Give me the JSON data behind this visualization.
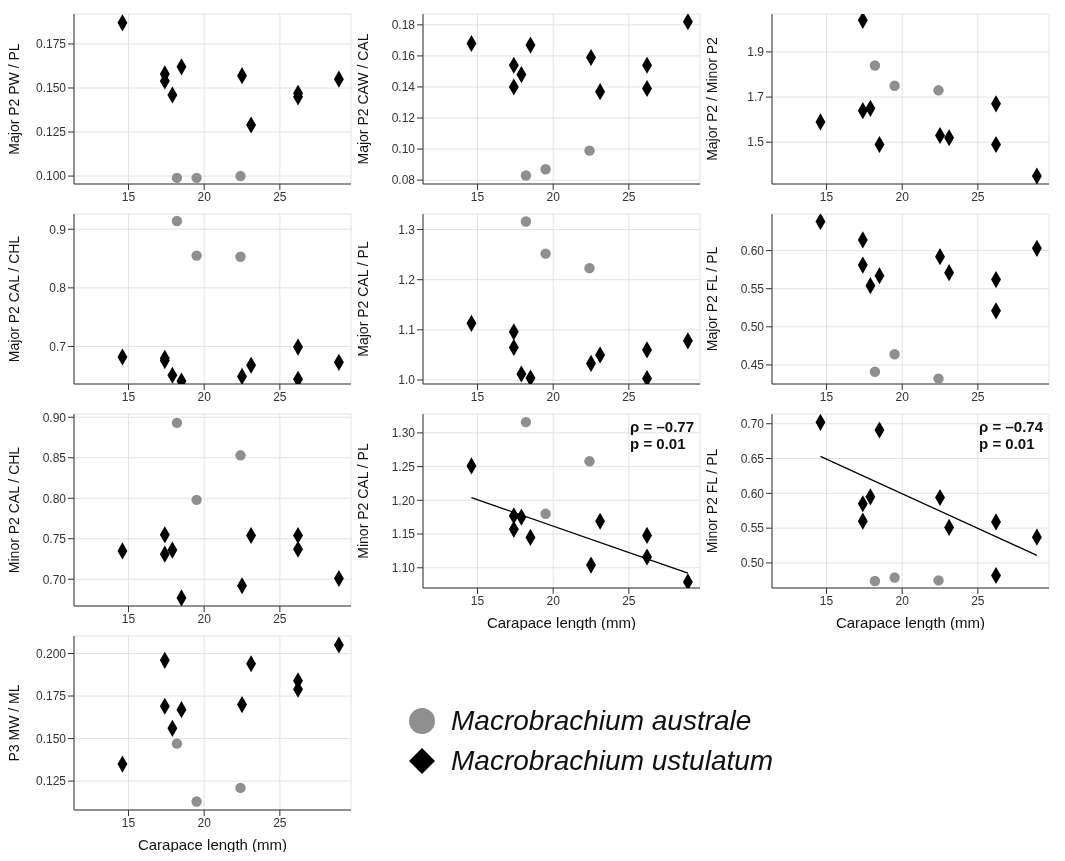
{
  "chart_data": [
    {
      "type": "scatter",
      "ylabel": "Major P2 PW / PL",
      "xlim": [
        11.4,
        29.7
      ],
      "xticks": [
        15,
        20,
        25
      ],
      "ylim": [
        0.0955,
        0.192
      ],
      "yticks": [
        {
          "value": 0.1,
          "label": "0.100"
        },
        {
          "value": 0.125,
          "label": "0.125"
        },
        {
          "value": 0.15,
          "label": "0.150"
        },
        {
          "value": 0.175,
          "label": "0.175"
        }
      ],
      "grid": true,
      "series": [
        {
          "color": "#8f8f8f",
          "marker": "circle",
          "x": [
            18.2,
            19.5,
            22.4
          ],
          "values": [
            0.099,
            0.099,
            0.1
          ]
        },
        {
          "color": "#000000",
          "marker": "diamond",
          "x": [
            14.6,
            17.4,
            17.4,
            17.9,
            18.5,
            22.5,
            23.1,
            26.2,
            26.2,
            28.9
          ],
          "values": [
            0.187,
            0.158,
            0.154,
            0.146,
            0.162,
            0.157,
            0.129,
            0.147,
            0.145,
            0.155
          ]
        }
      ]
    },
    {
      "type": "scatter",
      "ylabel": "Major P2 CAW / CAL",
      "xlim": [
        11.4,
        29.7
      ],
      "xticks": [
        15,
        20,
        25
      ],
      "ylim": [
        0.0775,
        0.187
      ],
      "yticks": [
        {
          "value": 0.08,
          "label": "0.08"
        },
        {
          "value": 0.1,
          "label": "0.10"
        },
        {
          "value": 0.12,
          "label": "0.12"
        },
        {
          "value": 0.14,
          "label": "0.14"
        },
        {
          "value": 0.16,
          "label": "0.16"
        },
        {
          "value": 0.18,
          "label": "0.18"
        }
      ],
      "grid": true,
      "series": [
        {
          "color": "#8f8f8f",
          "marker": "circle",
          "x": [
            18.2,
            19.5,
            22.4
          ],
          "values": [
            0.083,
            0.087,
            0.099
          ]
        },
        {
          "color": "#000000",
          "marker": "diamond",
          "x": [
            14.6,
            17.4,
            17.4,
            17.9,
            18.5,
            22.5,
            23.1,
            26.2,
            26.2,
            28.9
          ],
          "values": [
            0.168,
            0.154,
            0.14,
            0.148,
            0.167,
            0.159,
            0.137,
            0.154,
            0.139,
            0.182
          ]
        }
      ]
    },
    {
      "type": "scatter",
      "ylabel": "Major P2 / Minor P2",
      "xlim": [
        11.4,
        29.7
      ],
      "xticks": [
        15,
        20,
        25
      ],
      "ylim": [
        1.315,
        2.068
      ],
      "yticks": [
        1.5,
        1.7,
        1.9
      ],
      "grid": true,
      "series": [
        {
          "color": "#8f8f8f",
          "marker": "circle",
          "x": [
            18.2,
            19.5,
            22.4
          ],
          "values": [
            1.84,
            1.75,
            1.73
          ]
        },
        {
          "color": "#000000",
          "marker": "diamond",
          "x": [
            14.6,
            17.4,
            17.4,
            17.9,
            18.5,
            22.5,
            23.1,
            26.2,
            26.2,
            28.9
          ],
          "values": [
            1.59,
            2.04,
            1.64,
            1.65,
            1.49,
            1.53,
            1.52,
            1.67,
            1.49,
            1.35
          ]
        }
      ]
    },
    {
      "type": "scatter",
      "ylabel": "Major P2 CAL / CHL",
      "xlim": [
        11.4,
        29.7
      ],
      "xticks": [
        15,
        20,
        25
      ],
      "ylim": [
        0.636,
        0.926
      ],
      "yticks": [
        0.7,
        0.8,
        0.9
      ],
      "grid": true,
      "series": [
        {
          "color": "#8f8f8f",
          "marker": "circle",
          "x": [
            18.2,
            19.5,
            22.4
          ],
          "values": [
            0.914,
            0.855,
            0.853
          ]
        },
        {
          "color": "#000000",
          "marker": "diamond",
          "x": [
            14.6,
            17.4,
            17.4,
            17.9,
            18.5,
            22.5,
            23.1,
            26.2,
            26.2,
            28.9
          ],
          "values": [
            0.682,
            0.68,
            0.676,
            0.651,
            0.641,
            0.649,
            0.668,
            0.699,
            0.644,
            0.673
          ]
        }
      ]
    },
    {
      "type": "scatter",
      "ylabel": "Major P2 CAL / PL",
      "xlim": [
        11.4,
        29.7
      ],
      "xticks": [
        15,
        20,
        25
      ],
      "ylim": [
        0.992,
        1.331
      ],
      "yticks": [
        {
          "value": 1,
          "label": "1.0"
        },
        {
          "value": 1.1,
          "label": "1.1"
        },
        {
          "value": 1.2,
          "label": "1.2"
        },
        {
          "value": 1.3,
          "label": "1.3"
        }
      ],
      "grid": true,
      "series": [
        {
          "color": "#8f8f8f",
          "marker": "circle",
          "x": [
            18.2,
            19.5,
            22.4
          ],
          "values": [
            1.316,
            1.252,
            1.223
          ]
        },
        {
          "color": "#000000",
          "marker": "diamond",
          "x": [
            14.6,
            17.4,
            17.4,
            17.9,
            18.5,
            22.5,
            23.1,
            26.2,
            26.2,
            28.9
          ],
          "values": [
            1.113,
            1.096,
            1.065,
            1.012,
            1.004,
            1.033,
            1.05,
            1.06,
            1.003,
            1.078
          ]
        }
      ]
    },
    {
      "type": "scatter",
      "ylabel": "Major P2 FL / PL",
      "xlim": [
        11.4,
        29.7
      ],
      "xticks": [
        15,
        20,
        25
      ],
      "ylim": [
        0.425,
        0.648
      ],
      "yticks": [
        {
          "value": 0.45,
          "label": "0.45"
        },
        {
          "value": 0.5,
          "label": "0.50"
        },
        {
          "value": 0.55,
          "label": "0.55"
        },
        {
          "value": 0.6,
          "label": "0.60"
        }
      ],
      "grid": true,
      "series": [
        {
          "color": "#8f8f8f",
          "marker": "circle",
          "x": [
            18.2,
            19.5,
            22.4
          ],
          "values": [
            0.441,
            0.464,
            0.432
          ]
        },
        {
          "color": "#000000",
          "marker": "diamond",
          "x": [
            14.6,
            17.4,
            17.4,
            17.9,
            18.5,
            22.5,
            23.1,
            26.2,
            26.2,
            28.9
          ],
          "values": [
            0.638,
            0.614,
            0.581,
            0.554,
            0.567,
            0.592,
            0.571,
            0.562,
            0.521,
            0.603
          ]
        }
      ]
    },
    {
      "type": "scatter",
      "ylabel": "Minor P2 CAL / CHL",
      "xlim": [
        11.4,
        29.7
      ],
      "xticks": [
        15,
        20,
        25
      ],
      "ylim": [
        0.667,
        0.904
      ],
      "yticks": [
        {
          "value": 0.7,
          "label": "0.70"
        },
        {
          "value": 0.75,
          "label": "0.75"
        },
        {
          "value": 0.8,
          "label": "0.80"
        },
        {
          "value": 0.85,
          "label": "0.85"
        },
        {
          "value": 0.9,
          "label": "0.90"
        }
      ],
      "grid": true,
      "series": [
        {
          "color": "#8f8f8f",
          "marker": "circle",
          "x": [
            18.2,
            19.5,
            22.4
          ],
          "values": [
            0.893,
            0.798,
            0.853
          ]
        },
        {
          "color": "#000000",
          "marker": "diamond",
          "x": [
            14.6,
            17.4,
            17.4,
            17.9,
            18.5,
            22.5,
            23.1,
            26.2,
            26.2,
            28.9
          ],
          "values": [
            0.735,
            0.755,
            0.731,
            0.736,
            0.677,
            0.692,
            0.754,
            0.754,
            0.737,
            0.701
          ]
        }
      ]
    },
    {
      "type": "scatter",
      "ylabel": "Minor P2 CAL / PL",
      "xlabel": "Carapace length (mm)",
      "annotations": [
        "ρ = –0.77",
        "p = 0.01"
      ],
      "xlim": [
        11.4,
        29.7
      ],
      "xticks": [
        15,
        20,
        25
      ],
      "ylim": [
        1.07,
        1.328
      ],
      "yticks": [
        {
          "value": 1.1,
          "label": "1.10"
        },
        {
          "value": 1.15,
          "label": "1.15"
        },
        {
          "value": 1.2,
          "label": "1.20"
        },
        {
          "value": 1.25,
          "label": "1.25"
        },
        {
          "value": 1.3,
          "label": "1.30"
        }
      ],
      "grid": true,
      "series": [
        {
          "color": "#8f8f8f",
          "marker": "circle",
          "x": [
            18.2,
            19.5,
            22.4
          ],
          "values": [
            1.316,
            1.18,
            1.258
          ]
        },
        {
          "color": "#000000",
          "marker": "diamond",
          "x": [
            14.6,
            17.4,
            17.4,
            17.9,
            18.5,
            22.5,
            23.1,
            26.2,
            26.2,
            28.9
          ],
          "values": [
            1.251,
            1.177,
            1.157,
            1.175,
            1.145,
            1.104,
            1.169,
            1.148,
            1.116,
            1.079
          ]
        },
        {
          "type": "line",
          "color": "#000000",
          "x": [
            14.6,
            28.9
          ],
          "values": [
            1.204,
            1.092
          ]
        }
      ]
    },
    {
      "type": "scatter",
      "ylabel": "Minor P2 FL / PL",
      "xlabel": "Carapace length (mm)",
      "annotations": [
        "ρ = –0.74",
        "p = 0.01"
      ],
      "xlim": [
        11.4,
        29.7
      ],
      "xticks": [
        15,
        20,
        25
      ],
      "ylim": [
        0.464,
        0.714
      ],
      "yticks": [
        {
          "value": 0.5,
          "label": "0.50"
        },
        {
          "value": 0.55,
          "label": "0.55"
        },
        {
          "value": 0.6,
          "label": "0.60"
        },
        {
          "value": 0.65,
          "label": "0.65"
        },
        {
          "value": 0.7,
          "label": "0.70"
        }
      ],
      "grid": true,
      "series": [
        {
          "color": "#8f8f8f",
          "marker": "circle",
          "x": [
            18.2,
            19.5,
            22.4
          ],
          "values": [
            0.474,
            0.479,
            0.475
          ]
        },
        {
          "color": "#000000",
          "marker": "diamond",
          "x": [
            14.6,
            17.4,
            17.4,
            17.9,
            18.5,
            22.5,
            23.1,
            26.2,
            26.2,
            28.9
          ],
          "values": [
            0.702,
            0.585,
            0.56,
            0.595,
            0.691,
            0.594,
            0.551,
            0.559,
            0.482,
            0.537
          ]
        },
        {
          "type": "line",
          "color": "#000000",
          "x": [
            14.6,
            28.9
          ],
          "values": [
            0.653,
            0.511
          ]
        }
      ]
    },
    {
      "type": "scatter",
      "ylabel": "P3 MW / ML",
      "xlabel": "Carapace length (mm)",
      "legend": "right",
      "xlim": [
        11.4,
        29.7
      ],
      "xticks": [
        15,
        20,
        25
      ],
      "ylim": [
        0.108,
        0.2103
      ],
      "yticks": [
        {
          "value": 0.125,
          "label": "0.125"
        },
        {
          "value": 0.15,
          "label": "0.150"
        },
        {
          "value": 0.175,
          "label": "0.175"
        },
        {
          "value": 0.2,
          "label": "0.200"
        }
      ],
      "grid": true,
      "series": [
        {
          "name": "Macrobrachium australe",
          "color": "#8f8f8f",
          "marker": "circle",
          "x": [
            18.2,
            19.5,
            22.4
          ],
          "values": [
            0.147,
            0.113,
            0.121
          ]
        },
        {
          "name": "Macrobrachium ustulatum",
          "color": "#000000",
          "marker": "diamond",
          "x": [
            14.6,
            17.4,
            17.4,
            17.9,
            18.5,
            22.5,
            23.1,
            26.2,
            26.2,
            28.9
          ],
          "values": [
            0.135,
            0.196,
            0.169,
            0.156,
            0.167,
            0.17,
            0.194,
            0.184,
            0.179,
            0.205
          ]
        }
      ]
    }
  ]
}
